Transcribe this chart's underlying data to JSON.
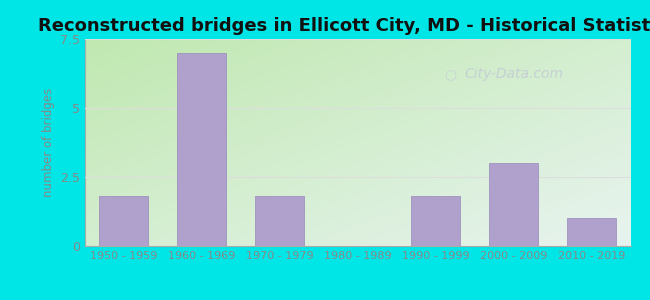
{
  "title": "Reconstructed bridges in Ellicott City, MD - Historical Statistics",
  "categories": [
    "1950 - 1959",
    "1960 - 1969",
    "1970 - 1979",
    "1980 - 1989",
    "1990 - 1999",
    "2000 - 2009",
    "2010 - 2019"
  ],
  "values": [
    1.8,
    7.0,
    1.8,
    0.0,
    1.8,
    3.0,
    1.0
  ],
  "bar_color": "#b0a0cc",
  "bar_edge_color": "#9988bb",
  "ylabel": "number of bridges",
  "ylim": [
    0,
    7.5
  ],
  "yticks": [
    0,
    2.5,
    5,
    7.5
  ],
  "background_outer": "#00e5e5",
  "background_corner_bl": "#c0e8b0",
  "background_corner_tr": "#e8f4f0",
  "title_fontsize": 13,
  "title_color": "#111111",
  "axis_label_color": "#888888",
  "tick_label_color": "#888888",
  "grid_color": "#dddddd",
  "watermark": "City-Data.com",
  "watermark_color": "#c5cdd5"
}
